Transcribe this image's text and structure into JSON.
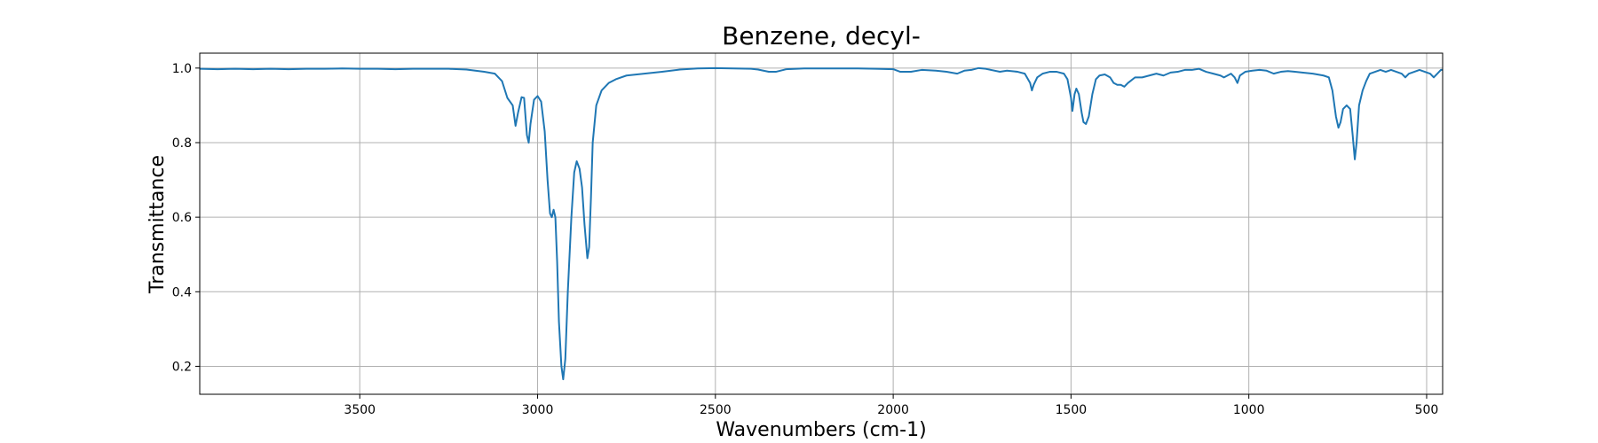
{
  "chart_data": {
    "type": "line",
    "title": "Benzene, decyl-",
    "xlabel": "Wavenumbers (cm-1)",
    "ylabel": "Transmittance",
    "xlim": [
      3950,
      455
    ],
    "ylim": [
      0.125,
      1.04
    ],
    "x_inverted": true,
    "grid": true,
    "xticks": [
      3500,
      3000,
      2500,
      2000,
      1500,
      1000,
      500
    ],
    "yticks": [
      0.2,
      0.4,
      0.6,
      0.8,
      1.0
    ],
    "xtick_labels": [
      "3500",
      "3000",
      "2500",
      "2000",
      "1500",
      "1000",
      "500"
    ],
    "ytick_labels": [
      "0.2",
      "0.4",
      "0.6",
      "0.8",
      "1.0"
    ],
    "series": [
      {
        "name": "",
        "color": "#1f77b4",
        "points": [
          [
            3950,
            0.998
          ],
          [
            3900,
            0.997
          ],
          [
            3850,
            0.998
          ],
          [
            3800,
            0.997
          ],
          [
            3750,
            0.998
          ],
          [
            3700,
            0.997
          ],
          [
            3650,
            0.998
          ],
          [
            3600,
            0.998
          ],
          [
            3550,
            0.999
          ],
          [
            3500,
            0.998
          ],
          [
            3450,
            0.998
          ],
          [
            3400,
            0.997
          ],
          [
            3350,
            0.998
          ],
          [
            3300,
            0.998
          ],
          [
            3250,
            0.998
          ],
          [
            3200,
            0.996
          ],
          [
            3150,
            0.99
          ],
          [
            3120,
            0.985
          ],
          [
            3100,
            0.965
          ],
          [
            3085,
            0.92
          ],
          [
            3070,
            0.9
          ],
          [
            3062,
            0.845
          ],
          [
            3055,
            0.88
          ],
          [
            3045,
            0.922
          ],
          [
            3038,
            0.92
          ],
          [
            3030,
            0.82
          ],
          [
            3025,
            0.8
          ],
          [
            3020,
            0.85
          ],
          [
            3010,
            0.915
          ],
          [
            3000,
            0.925
          ],
          [
            2990,
            0.91
          ],
          [
            2980,
            0.83
          ],
          [
            2972,
            0.7
          ],
          [
            2965,
            0.61
          ],
          [
            2960,
            0.6
          ],
          [
            2955,
            0.62
          ],
          [
            2950,
            0.6
          ],
          [
            2945,
            0.48
          ],
          [
            2940,
            0.32
          ],
          [
            2933,
            0.2
          ],
          [
            2928,
            0.165
          ],
          [
            2922,
            0.22
          ],
          [
            2915,
            0.4
          ],
          [
            2905,
            0.6
          ],
          [
            2897,
            0.72
          ],
          [
            2890,
            0.75
          ],
          [
            2882,
            0.73
          ],
          [
            2875,
            0.68
          ],
          [
            2868,
            0.58
          ],
          [
            2860,
            0.49
          ],
          [
            2855,
            0.52
          ],
          [
            2850,
            0.65
          ],
          [
            2845,
            0.8
          ],
          [
            2835,
            0.9
          ],
          [
            2820,
            0.94
          ],
          [
            2800,
            0.96
          ],
          [
            2780,
            0.97
          ],
          [
            2750,
            0.98
          ],
          [
            2700,
            0.985
          ],
          [
            2650,
            0.99
          ],
          [
            2600,
            0.996
          ],
          [
            2550,
            0.999
          ],
          [
            2500,
            1.0
          ],
          [
            2450,
            0.999
          ],
          [
            2400,
            0.998
          ],
          [
            2380,
            0.996
          ],
          [
            2350,
            0.99
          ],
          [
            2330,
            0.99
          ],
          [
            2300,
            0.997
          ],
          [
            2250,
            0.999
          ],
          [
            2200,
            0.999
          ],
          [
            2150,
            0.999
          ],
          [
            2100,
            0.999
          ],
          [
            2050,
            0.998
          ],
          [
            2000,
            0.997
          ],
          [
            1980,
            0.99
          ],
          [
            1950,
            0.99
          ],
          [
            1920,
            0.995
          ],
          [
            1880,
            0.993
          ],
          [
            1850,
            0.99
          ],
          [
            1820,
            0.985
          ],
          [
            1800,
            0.993
          ],
          [
            1780,
            0.995
          ],
          [
            1760,
            1.0
          ],
          [
            1740,
            0.998
          ],
          [
            1700,
            0.99
          ],
          [
            1680,
            0.993
          ],
          [
            1650,
            0.99
          ],
          [
            1630,
            0.985
          ],
          [
            1615,
            0.96
          ],
          [
            1610,
            0.94
          ],
          [
            1605,
            0.955
          ],
          [
            1595,
            0.975
          ],
          [
            1580,
            0.985
          ],
          [
            1560,
            0.99
          ],
          [
            1540,
            0.99
          ],
          [
            1520,
            0.985
          ],
          [
            1510,
            0.97
          ],
          [
            1500,
            0.92
          ],
          [
            1496,
            0.885
          ],
          [
            1490,
            0.93
          ],
          [
            1485,
            0.945
          ],
          [
            1478,
            0.93
          ],
          [
            1470,
            0.88
          ],
          [
            1465,
            0.855
          ],
          [
            1458,
            0.85
          ],
          [
            1450,
            0.87
          ],
          [
            1440,
            0.93
          ],
          [
            1430,
            0.97
          ],
          [
            1420,
            0.98
          ],
          [
            1405,
            0.983
          ],
          [
            1390,
            0.975
          ],
          [
            1380,
            0.96
          ],
          [
            1370,
            0.955
          ],
          [
            1360,
            0.955
          ],
          [
            1350,
            0.95
          ],
          [
            1340,
            0.96
          ],
          [
            1320,
            0.975
          ],
          [
            1300,
            0.975
          ],
          [
            1280,
            0.98
          ],
          [
            1260,
            0.985
          ],
          [
            1240,
            0.98
          ],
          [
            1220,
            0.988
          ],
          [
            1200,
            0.99
          ],
          [
            1180,
            0.995
          ],
          [
            1160,
            0.995
          ],
          [
            1140,
            0.998
          ],
          [
            1120,
            0.99
          ],
          [
            1100,
            0.985
          ],
          [
            1080,
            0.98
          ],
          [
            1070,
            0.975
          ],
          [
            1060,
            0.98
          ],
          [
            1050,
            0.985
          ],
          [
            1040,
            0.975
          ],
          [
            1032,
            0.96
          ],
          [
            1025,
            0.98
          ],
          [
            1010,
            0.99
          ],
          [
            990,
            0.993
          ],
          [
            970,
            0.995
          ],
          [
            950,
            0.993
          ],
          [
            930,
            0.985
          ],
          [
            910,
            0.99
          ],
          [
            890,
            0.992
          ],
          [
            870,
            0.99
          ],
          [
            850,
            0.988
          ],
          [
            820,
            0.985
          ],
          [
            790,
            0.98
          ],
          [
            775,
            0.975
          ],
          [
            765,
            0.94
          ],
          [
            755,
            0.87
          ],
          [
            748,
            0.84
          ],
          [
            742,
            0.855
          ],
          [
            735,
            0.89
          ],
          [
            725,
            0.9
          ],
          [
            715,
            0.89
          ],
          [
            708,
            0.82
          ],
          [
            702,
            0.755
          ],
          [
            697,
            0.8
          ],
          [
            690,
            0.9
          ],
          [
            680,
            0.94
          ],
          [
            670,
            0.965
          ],
          [
            660,
            0.985
          ],
          [
            645,
            0.99
          ],
          [
            630,
            0.995
          ],
          [
            615,
            0.99
          ],
          [
            600,
            0.995
          ],
          [
            585,
            0.99
          ],
          [
            570,
            0.985
          ],
          [
            560,
            0.975
          ],
          [
            550,
            0.985
          ],
          [
            535,
            0.99
          ],
          [
            520,
            0.995
          ],
          [
            505,
            0.99
          ],
          [
            490,
            0.985
          ],
          [
            480,
            0.975
          ],
          [
            470,
            0.985
          ],
          [
            460,
            0.995
          ],
          [
            455,
            0.995
          ]
        ]
      }
    ]
  }
}
